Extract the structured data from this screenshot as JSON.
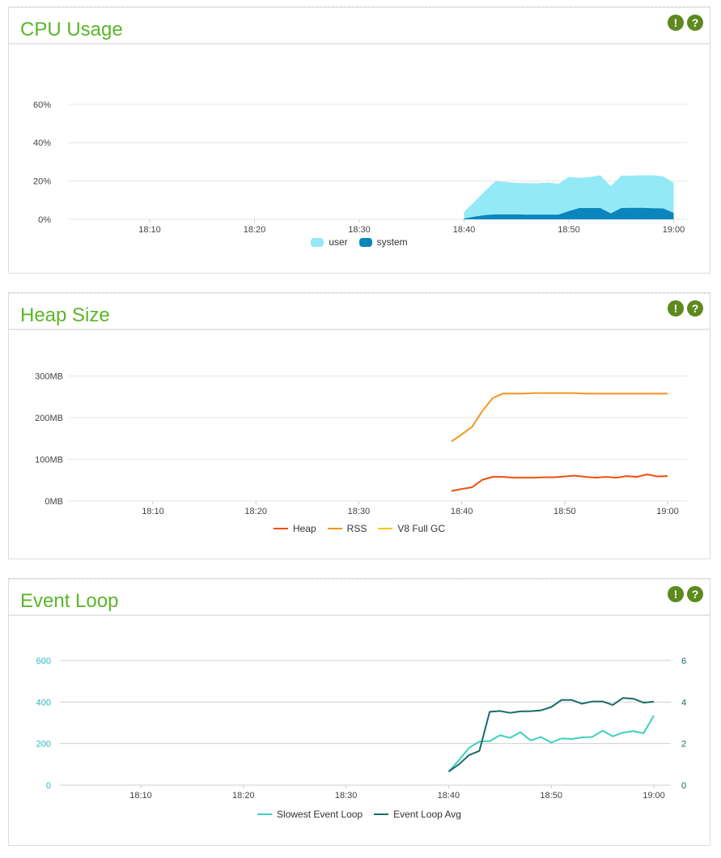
{
  "panels": {
    "cpu": {
      "title": "CPU Usage"
    },
    "heap": {
      "title": "Heap Size"
    },
    "loop": {
      "title": "Event Loop"
    }
  },
  "icons": {
    "info": "!",
    "help": "?"
  },
  "chart_data": [
    {
      "type": "area",
      "title": "CPU Usage",
      "x_ticks": [
        "18:10",
        "18:20",
        "18:30",
        "18:40",
        "18:50",
        "19:00"
      ],
      "y_ticks": [
        "0%",
        "20%",
        "40%",
        "60%"
      ],
      "ylim": [
        0,
        65
      ],
      "x_minutes": [
        40,
        41,
        42,
        43,
        44,
        45,
        46,
        47,
        48,
        49,
        50,
        51,
        52,
        53,
        54,
        55,
        56,
        57,
        58,
        59,
        60
      ],
      "series": [
        {
          "name": "user",
          "color": "#94e9f6",
          "values": [
            3.5,
            7.8,
            12.6,
            17.3,
            16.9,
            16.4,
            16.4,
            16.3,
            16.7,
            16.0,
            17.8,
            15.8,
            16.2,
            17.1,
            14.2,
            16.9,
            16.8,
            17.0,
            17.2,
            16.7,
            15.7
          ]
        },
        {
          "name": "system",
          "color": "#0a86bd",
          "values": [
            0.4,
            1.4,
            2.2,
            2.6,
            2.6,
            2.6,
            2.5,
            2.5,
            2.5,
            2.5,
            4.3,
            5.9,
            5.9,
            5.9,
            3.1,
            5.9,
            6.0,
            6.0,
            5.8,
            5.7,
            3.4
          ]
        }
      ],
      "legend": [
        "user",
        "system"
      ]
    },
    {
      "type": "line",
      "title": "Heap Size",
      "x_ticks": [
        "18:10",
        "18:20",
        "18:30",
        "18:40",
        "18:50",
        "19:00"
      ],
      "y_ticks": [
        "0MB",
        "100MB",
        "200MB",
        "300MB"
      ],
      "ylim": [
        0,
        305
      ],
      "x_minutes": [
        39,
        40,
        41,
        42,
        43,
        44,
        45,
        46,
        47,
        48,
        49,
        50,
        51,
        52,
        53,
        54,
        55,
        56,
        57,
        58,
        59,
        60
      ],
      "series": [
        {
          "name": "Heap",
          "color": "#f04e0d",
          "values": [
            24,
            29,
            33,
            51,
            58,
            58,
            56,
            56,
            56,
            57,
            57,
            59,
            61,
            58,
            56,
            58,
            56,
            60,
            58,
            64,
            59,
            60
          ]
        },
        {
          "name": "RSS",
          "color": "#f7941d",
          "values": [
            143,
            160,
            178,
            216,
            247,
            258,
            258,
            258,
            259,
            259,
            259,
            259,
            259,
            258,
            258,
            258,
            258,
            258,
            258,
            258,
            258,
            258
          ]
        },
        {
          "name": "V8 Full GC",
          "color": "#f9c31f",
          "values": []
        }
      ],
      "legend": [
        "Heap",
        "RSS",
        "V8 Full GC"
      ]
    },
    {
      "type": "line",
      "title": "Event Loop",
      "x_ticks": [
        "18:10",
        "18:20",
        "18:30",
        "18:40",
        "18:50",
        "19:00"
      ],
      "y_left_ticks": [
        "0",
        "200",
        "400",
        "600"
      ],
      "y_right_ticks": [
        "0",
        "2",
        "4",
        "6"
      ],
      "ylim_left": [
        0,
        600
      ],
      "ylim_right": [
        0,
        6
      ],
      "x_minutes": [
        40,
        41,
        42,
        43,
        44,
        45,
        46,
        47,
        48,
        49,
        50,
        51,
        52,
        53,
        54,
        55,
        56,
        57,
        58,
        59,
        60
      ],
      "series": [
        {
          "name": "Slowest Event Loop",
          "color": "#3fd0bd",
          "axis": "left",
          "values": [
            65,
            120,
            180,
            210,
            212,
            240,
            228,
            255,
            215,
            232,
            205,
            225,
            222,
            230,
            232,
            262,
            235,
            253,
            260,
            250,
            335
          ]
        },
        {
          "name": "Event Loop Avg",
          "color": "#176c68",
          "axis": "right",
          "values": [
            0.65,
            1.0,
            1.45,
            1.65,
            3.53,
            3.57,
            3.48,
            3.55,
            3.56,
            3.6,
            3.76,
            4.1,
            4.1,
            3.92,
            4.03,
            4.03,
            3.86,
            4.2,
            4.16,
            3.97,
            4.02
          ]
        }
      ],
      "legend": [
        "Slowest Event Loop",
        "Event Loop Avg"
      ]
    }
  ]
}
